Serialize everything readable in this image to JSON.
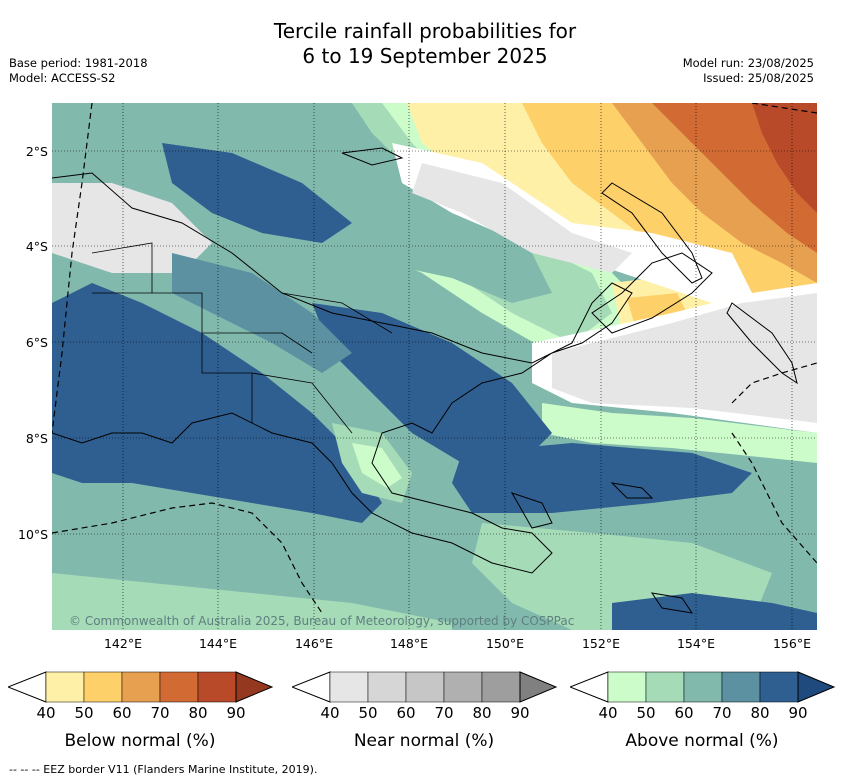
{
  "title_line1": "Tercile rainfall probabilities for",
  "title_line2": "6 to 19 September 2025",
  "base_period": "Base period: 1981-2018",
  "model": "Model: ACCESS-S2",
  "model_run": "Model run: 23/08/2025",
  "issued": "Issued: 25/08/2025",
  "lat_ticks": [
    "2°S",
    "4°S",
    "6°S",
    "8°S",
    "10°S"
  ],
  "lon_ticks": [
    "142°E",
    "144°E",
    "146°E",
    "148°E",
    "150°E",
    "152°E",
    "154°E",
    "156°E"
  ],
  "copyright": "© Commonwealth of Australia 2025, Bureau of Meteorology, supported by COSPPac",
  "legends": [
    {
      "label": "Below normal (%)",
      "ticks": [
        "40",
        "50",
        "60",
        "70",
        "80",
        "90"
      ],
      "colors": [
        "#fff0a8",
        "#fdd06a",
        "#e7a050",
        "#d26a34",
        "#b84a2a",
        "#943820"
      ]
    },
    {
      "label": "Near normal (%)",
      "ticks": [
        "40",
        "50",
        "60",
        "70",
        "80",
        "90"
      ],
      "colors": [
        "#e6e6e6",
        "#d6d6d6",
        "#c6c6c6",
        "#b0b0b0",
        "#9e9e9e",
        "#808080"
      ]
    },
    {
      "label": "Above normal (%)",
      "ticks": [
        "40",
        "50",
        "60",
        "70",
        "80",
        "90"
      ],
      "colors": [
        "#cdfccb",
        "#a6dbb8",
        "#82b9ad",
        "#5b91a0",
        "#2f5f90",
        "#1f4a7d"
      ]
    }
  ],
  "footnote": "--  --  -- EEZ border V11 (Flanders Marine Institute, 2019)."
}
